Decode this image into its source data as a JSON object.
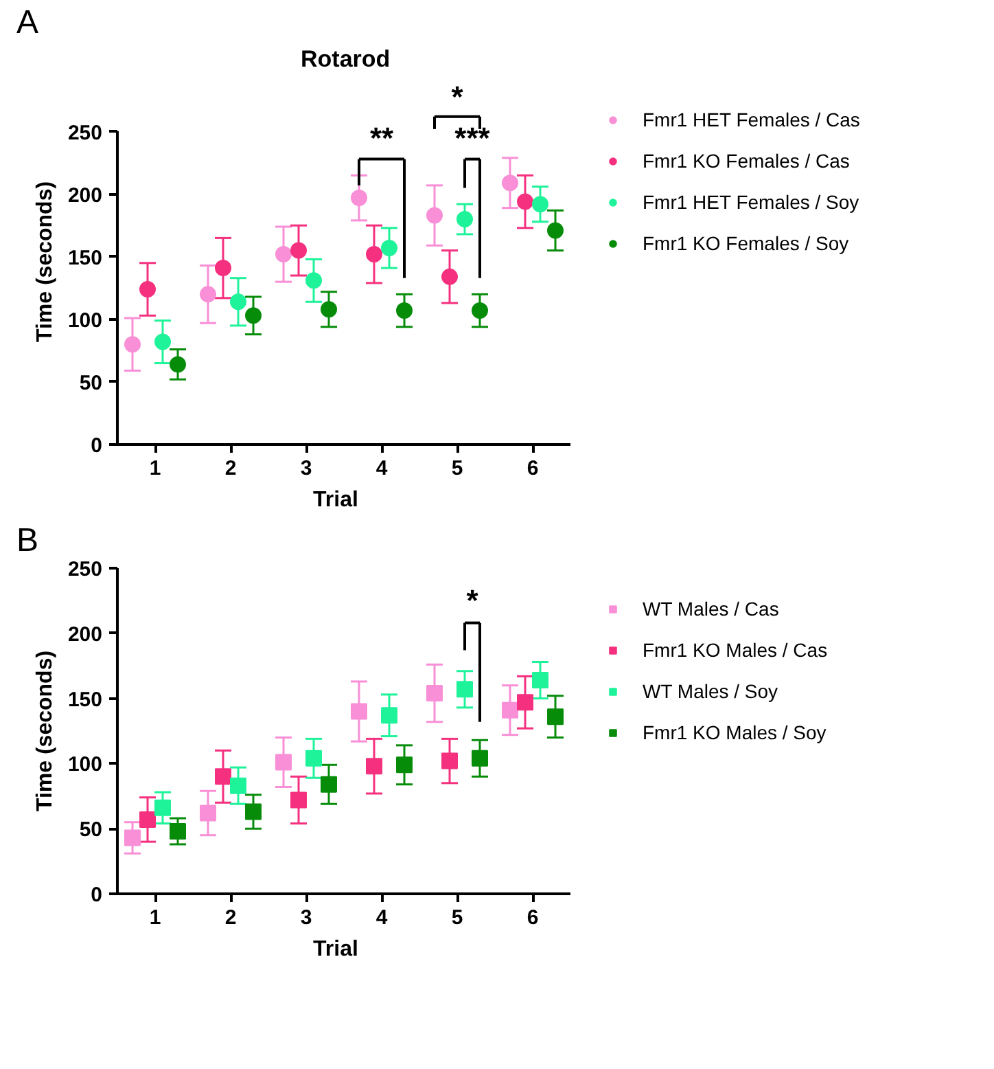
{
  "chart_data": [
    {
      "type": "scatter",
      "title": "Rotarod",
      "xlabel": "Trial",
      "ylabel": "Time (seconds)",
      "categories": [
        "1",
        "2",
        "3",
        "4",
        "5",
        "6"
      ],
      "marker": "circle",
      "legend": "right",
      "grid": false,
      "ylim": [
        0,
        250
      ],
      "yticks": [
        0,
        50,
        100,
        150,
        200,
        250
      ],
      "series": [
        {
          "name": "Fmr1 HET Females / Cas",
          "color": "#f98fd6",
          "values": [
            80,
            120,
            152,
            197,
            183,
            209
          ],
          "errors": [
            21,
            23,
            22,
            18,
            24,
            20
          ]
        },
        {
          "name": "Fmr1 KO Females / Cas",
          "color": "#f5307f",
          "values": [
            124,
            141,
            155,
            152,
            134,
            194
          ],
          "errors": [
            21,
            24,
            20,
            23,
            21,
            21
          ]
        },
        {
          "name": "Fmr1 HET Females / Soy",
          "color": "#1ef39a",
          "values": [
            82,
            114,
            131,
            157,
            180,
            192
          ],
          "errors": [
            17,
            19,
            17,
            16,
            12,
            14
          ]
        },
        {
          "name": "Fmr1 KO Females / Soy",
          "color": "#078c0a",
          "values": [
            64,
            103,
            108,
            107,
            107,
            171
          ],
          "errors": [
            12,
            15,
            14,
            13,
            13,
            16
          ]
        }
      ],
      "annotations": [
        "A",
        "**",
        "***",
        "*"
      ]
    },
    {
      "type": "scatter",
      "xlabel": "Trial",
      "ylabel": "Time (seconds)",
      "categories": [
        "1",
        "2",
        "3",
        "4",
        "5",
        "6"
      ],
      "marker": "square",
      "legend": "right",
      "grid": false,
      "ylim": [
        0,
        250
      ],
      "yticks": [
        0,
        50,
        100,
        150,
        200,
        250
      ],
      "series": [
        {
          "name": "WT Males / Cas",
          "color": "#f98fd6",
          "values": [
            43,
            62,
            101,
            140,
            154,
            141
          ],
          "errors": [
            12,
            17,
            19,
            23,
            22,
            19
          ]
        },
        {
          "name": "Fmr1 KO Males / Cas",
          "color": "#f5307f",
          "values": [
            57,
            90,
            72,
            98,
            102,
            147
          ],
          "errors": [
            17,
            20,
            18,
            21,
            17,
            20
          ]
        },
        {
          "name": "WT Males / Soy",
          "color": "#1ef39a",
          "values": [
            66,
            83,
            104,
            137,
            157,
            164
          ],
          "errors": [
            12,
            14,
            15,
            16,
            14,
            14
          ]
        },
        {
          "name": "Fmr1 KO Males / Soy",
          "color": "#078c0a",
          "values": [
            48,
            63,
            84,
            99,
            104,
            136
          ],
          "errors": [
            10,
            13,
            15,
            15,
            14,
            16
          ]
        }
      ],
      "annotations": [
        "B",
        "*"
      ]
    }
  ]
}
